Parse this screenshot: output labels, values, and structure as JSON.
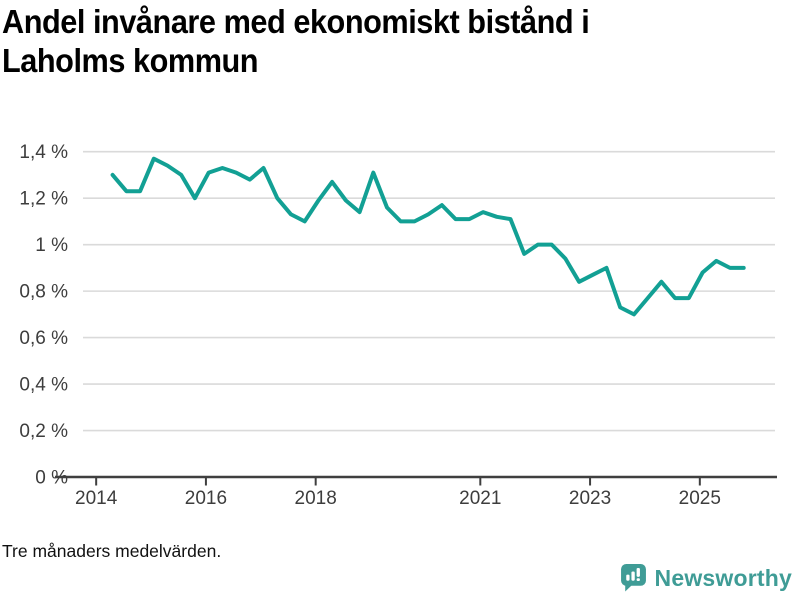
{
  "page": {
    "title": "Andel invånare med ekonomiskt bistånd i Laholms kommun",
    "title_lines": [
      "Andel invånare med ekonomiskt bistånd i",
      "Laholms kommun"
    ],
    "footnote": "Tre månaders medelvärden.",
    "background": "#ffffff"
  },
  "branding": {
    "logo_text": "Newsworthy",
    "logo_color": "#3f9c96",
    "logo_icon": "bar-chart-speech-bubble-icon"
  },
  "chart_data": {
    "type": "line",
    "title": "Andel invånare med ekonomiskt bistånd i Laholms kommun",
    "xlabel": "",
    "ylabel": "",
    "unit": "%",
    "line_color": "#12a094",
    "grid": true,
    "legend": "none",
    "xlim": [
      2013.76,
      2026.37
    ],
    "ylim": [
      0,
      1.4
    ],
    "ytick_values": [
      0,
      0.2,
      0.4,
      0.6,
      0.8,
      1,
      1.2,
      1.4
    ],
    "ytick_labels": [
      "0 %",
      "0,2 %",
      "0,4 %",
      "0,6 %",
      "0,8 %",
      "1 %",
      "1,2 %",
      "1,4 %"
    ],
    "xtick_values": [
      2014,
      2016,
      2018,
      2021,
      2023,
      2025
    ],
    "xtick_labels": [
      "2014",
      "2016",
      "2018",
      "2021",
      "2023",
      "2025"
    ],
    "x": [
      2014.3,
      2014.55,
      2014.8,
      2015.05,
      2015.3,
      2015.55,
      2015.8,
      2016.05,
      2016.3,
      2016.55,
      2016.8,
      2017.05,
      2017.3,
      2017.55,
      2017.8,
      2018.05,
      2018.3,
      2018.55,
      2018.8,
      2019.05,
      2019.3,
      2019.55,
      2019.8,
      2020.05,
      2020.3,
      2020.55,
      2020.8,
      2021.05,
      2021.3,
      2021.55,
      2021.8,
      2022.05,
      2022.3,
      2022.55,
      2022.8,
      2023.05,
      2023.3,
      2023.55,
      2023.8,
      2024.05,
      2024.3,
      2024.55,
      2024.8,
      2025.05,
      2025.3,
      2025.55,
      2025.8
    ],
    "y": [
      1.3,
      1.23,
      1.23,
      1.37,
      1.34,
      1.3,
      1.2,
      1.31,
      1.33,
      1.31,
      1.28,
      1.33,
      1.2,
      1.13,
      1.1,
      1.19,
      1.27,
      1.19,
      1.14,
      1.31,
      1.16,
      1.1,
      1.1,
      1.13,
      1.17,
      1.11,
      1.11,
      1.14,
      1.12,
      1.11,
      0.96,
      1.0,
      1.0,
      0.94,
      0.84,
      0.87,
      0.9,
      0.73,
      0.7,
      0.77,
      0.84,
      0.77,
      0.77,
      0.88,
      0.93,
      0.9,
      0.9
    ]
  }
}
